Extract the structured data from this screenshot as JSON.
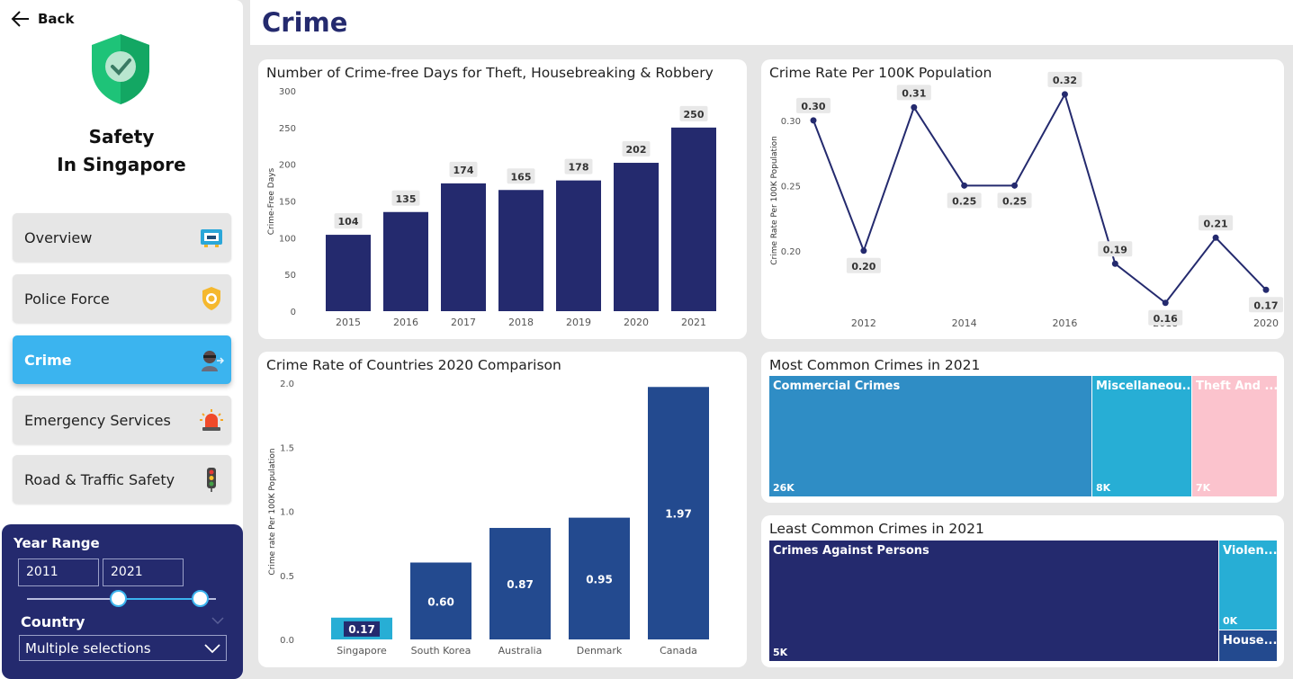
{
  "sidebar": {
    "back_label": "Back",
    "title_line1": "Safety",
    "title_line2": "In Singapore",
    "nav": [
      {
        "label": "Overview",
        "icon": "tv-icon"
      },
      {
        "label": "Police Force",
        "icon": "police-badge-icon"
      },
      {
        "label": "Crime",
        "icon": "thief-icon",
        "active": true
      },
      {
        "label": "Emergency Services",
        "icon": "siren-icon"
      },
      {
        "label": "Road & Traffic Safety",
        "icon": "traffic-light-icon"
      }
    ],
    "filters": {
      "year_range_label": "Year Range",
      "year_from": "2011",
      "year_to": "2021",
      "country_label": "Country",
      "country_value": "Multiple selections"
    }
  },
  "header": {
    "title": "Crime"
  },
  "colors": {
    "navy": "#242a6e",
    "blue": "#234a8f",
    "cyan": "#27aed5",
    "accent": "#3bb4ef"
  },
  "chart_data": [
    {
      "type": "bar",
      "title": "Number of Crime-free Days for Theft, Housebreaking & Robbery",
      "ylabel": "Crime-Free Days",
      "categories": [
        "2015",
        "2016",
        "2017",
        "2018",
        "2019",
        "2020",
        "2021"
      ],
      "values": [
        104,
        135,
        174,
        165,
        178,
        202,
        250
      ],
      "yticks": [
        "300",
        "250",
        "200",
        "150",
        "100",
        "50",
        "0"
      ],
      "ylim": [
        0,
        300
      ]
    },
    {
      "type": "line",
      "title": "Crime Rate Per 100K Population",
      "ylabel": "Crime Rate Per 100K Population",
      "x": [
        2011,
        2012,
        2013,
        2014,
        2015,
        2016,
        2017,
        2018,
        2019,
        2020
      ],
      "values": [
        0.3,
        0.2,
        0.31,
        0.25,
        0.25,
        0.32,
        0.19,
        0.16,
        0.21,
        0.17
      ],
      "labels": [
        "0.30",
        "0.20",
        "0.31",
        "0.25",
        "0.25",
        "0.32",
        "0.19",
        "0.16",
        "0.21",
        "0.17"
      ],
      "xticks": [
        "2012",
        "2014",
        "2016",
        "2018",
        "2020"
      ],
      "yticks": [
        "0.30",
        "0.25",
        "0.20"
      ],
      "ylim": [
        0.155,
        0.322
      ]
    },
    {
      "type": "bar",
      "title": "Crime Rate of Countries 2020 Comparison",
      "ylabel": "Crime rate Per 100K Population",
      "categories": [
        "Singapore",
        "South Korea",
        "Australia",
        "Denmark",
        "Canada"
      ],
      "values": [
        0.17,
        0.6,
        0.87,
        0.95,
        1.97
      ],
      "labels": [
        "0.17",
        "0.60",
        "0.87",
        "0.95",
        "1.97"
      ],
      "highlight": "Singapore",
      "yticks": [
        "2.0",
        "1.5",
        "1.0",
        "0.5",
        "0.0"
      ],
      "ylim": [
        0,
        2.0
      ]
    },
    {
      "type": "treemap",
      "title": "Most Common Crimes in 2021",
      "items": [
        {
          "name": "Commercial Crimes",
          "value_label": "26K",
          "color": "#2f8dc5"
        },
        {
          "name": "Miscellaneou...",
          "value_label": "8K",
          "color": "#27aed5"
        },
        {
          "name": "Theft And ...",
          "value_label": "7K",
          "color": "#fbc3cd"
        }
      ]
    },
    {
      "type": "treemap",
      "title": "Least Common Crimes in 2021",
      "items": [
        {
          "name": "Crimes Against Persons",
          "value_label": "5K",
          "color": "#242a6e"
        },
        {
          "name": "Violen...",
          "value_label": "0K",
          "color": "#27aed5"
        },
        {
          "name": "House...",
          "value_label": "",
          "color": "#234a8f"
        }
      ]
    }
  ]
}
